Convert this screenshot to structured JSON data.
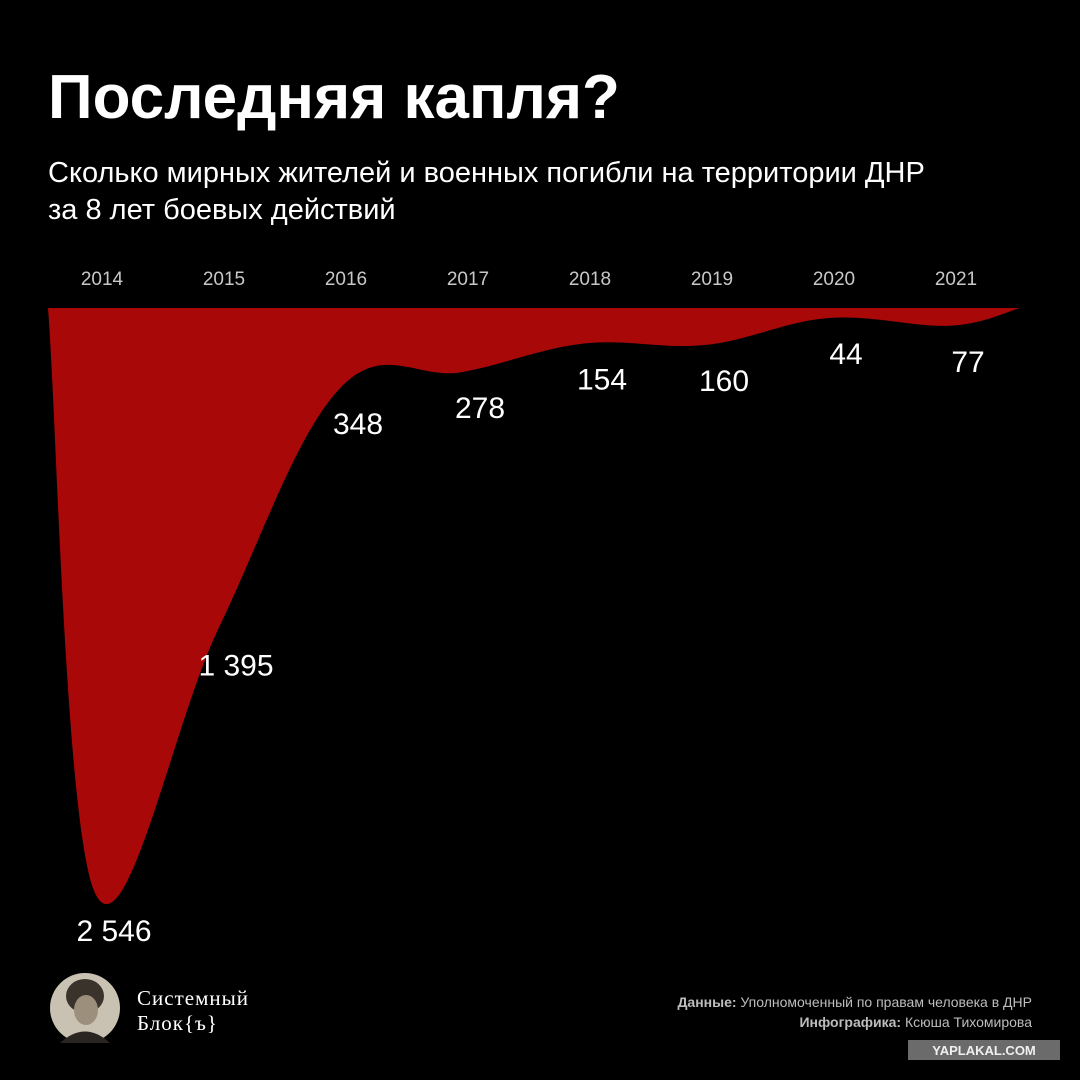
{
  "chart_data": {
    "type": "area",
    "title": "Последняя капля?",
    "subtitle": [
      "Сколько мирных жителей и военных погибли на территории ДНР",
      "за 8 лет боевых действий"
    ],
    "categories": [
      "2014",
      "2015",
      "2016",
      "2017",
      "2018",
      "2019",
      "2020",
      "2021"
    ],
    "values": [
      2546,
      1395,
      348,
      278,
      154,
      160,
      44,
      77
    ],
    "value_labels": [
      "2 546",
      "1 395",
      "348",
      "278",
      "154",
      "160",
      "44",
      "77"
    ],
    "color": "#a80808"
  },
  "footer": {
    "brand": [
      "Системный",
      "Блок{ъ}"
    ],
    "source_label": "Данные:",
    "source": "Уполномоченный по правам человека в ДНР",
    "author_label": "Инфографика:",
    "author": "Ксюша Тихомирова",
    "watermark": "YAPLAKAL.COM"
  }
}
